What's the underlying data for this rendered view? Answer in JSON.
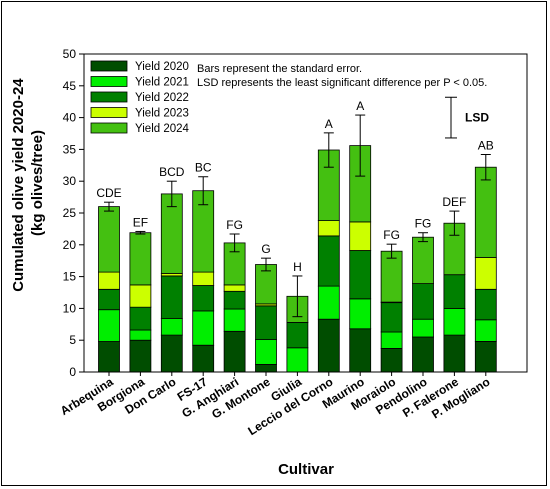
{
  "chart_data": {
    "type": "bar",
    "stacked": true,
    "xlabel": "Cultivar",
    "ylabel": "Cumulated olive yield 2020-24\n(kg olives/tree)",
    "ylim": [
      0,
      50
    ],
    "yticks": [
      0,
      5,
      10,
      15,
      20,
      25,
      30,
      35,
      40,
      45,
      50
    ],
    "categories": [
      "Arbequina",
      "Borgiona",
      "Don Carlo",
      "FS-17",
      "G. Anghiari",
      "G. Montone",
      "Giulia",
      "Leccio del Corno",
      "Maurino",
      "Moraiolo",
      "Pendolino",
      "P. Falerone",
      "P. Mogliano"
    ],
    "series": [
      {
        "name": "Yield 2020",
        "color": "#004d00",
        "values": [
          4.8,
          5.0,
          5.8,
          4.2,
          6.4,
          1.2,
          0.0,
          8.3,
          6.8,
          3.7,
          5.5,
          5.8,
          4.8
        ]
      },
      {
        "name": "Yield 2021",
        "color": "#00ee00",
        "values": [
          5.0,
          1.6,
          2.6,
          5.4,
          3.5,
          3.9,
          3.8,
          5.2,
          4.7,
          2.6,
          2.8,
          4.2,
          3.4
        ]
      },
      {
        "name": "Yield 2022",
        "color": "#008000",
        "values": [
          3.2,
          3.6,
          6.7,
          4.0,
          2.8,
          5.3,
          4.0,
          7.9,
          7.6,
          4.6,
          5.6,
          5.3,
          4.8
        ]
      },
      {
        "name": "Yield 2023",
        "color": "#ccff00",
        "values": [
          2.7,
          3.5,
          0.4,
          2.1,
          1.0,
          0.3,
          0.0,
          2.4,
          4.5,
          0.1,
          0.0,
          0.0,
          5.0
        ]
      },
      {
        "name": "Yield 2024",
        "color": "#44c011",
        "values": [
          10.3,
          8.2,
          12.5,
          12.8,
          6.6,
          6.2,
          4.1,
          11.1,
          12.0,
          8.0,
          7.3,
          8.1,
          14.2
        ]
      }
    ],
    "totals": [
      26.0,
      21.9,
      28.0,
      28.5,
      20.3,
      16.9,
      11.9,
      34.9,
      35.6,
      19.0,
      21.2,
      23.4,
      32.2
    ],
    "errors": [
      0.7,
      0.2,
      2.0,
      2.2,
      1.4,
      1.0,
      3.2,
      2.7,
      4.8,
      1.1,
      0.7,
      1.9,
      2.0
    ],
    "letters": [
      "CDE",
      "EF",
      "BCD",
      "BC",
      "FG",
      "G",
      "H",
      "A",
      "A",
      "FG",
      "FG",
      "DEF",
      "AB"
    ],
    "lsd": {
      "label": "LSD",
      "center": 40.0,
      "half_length": 3.2
    },
    "legend_position": "top-left",
    "notes": [
      "Bars represent the standard error.",
      "LSD represents the least significant difference per P < 0.05."
    ],
    "grid": false
  }
}
